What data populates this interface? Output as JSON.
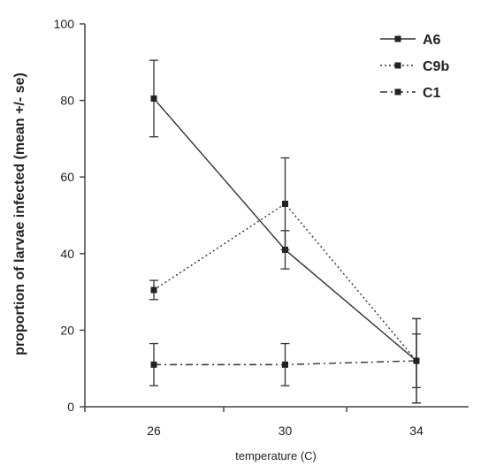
{
  "chart_data": {
    "type": "line",
    "x": [
      26,
      30,
      34
    ],
    "x_ticks": [
      "26",
      "30",
      "34"
    ],
    "y_ticks": [
      "0",
      "20",
      "40",
      "60",
      "80",
      "100"
    ],
    "ylim": [
      0,
      100
    ],
    "xlabel": "temperature (C)",
    "ylabel": "proportion of larvae infected (mean +/- se)",
    "grid": false,
    "legend_position": "top-right",
    "series": [
      {
        "name": "A6",
        "style": "solid",
        "color": "#333333",
        "values": [
          80.5,
          41,
          12
        ],
        "err": [
          10,
          5,
          11
        ]
      },
      {
        "name": "C9b",
        "style": "dotted",
        "color": "#333333",
        "values": [
          30.5,
          53,
          12
        ],
        "err": [
          2.5,
          12,
          7
        ]
      },
      {
        "name": "C1",
        "style": "dash-dot",
        "color": "#333333",
        "values": [
          11,
          11,
          12
        ],
        "err": [
          5.5,
          5.5,
          11
        ]
      }
    ]
  }
}
